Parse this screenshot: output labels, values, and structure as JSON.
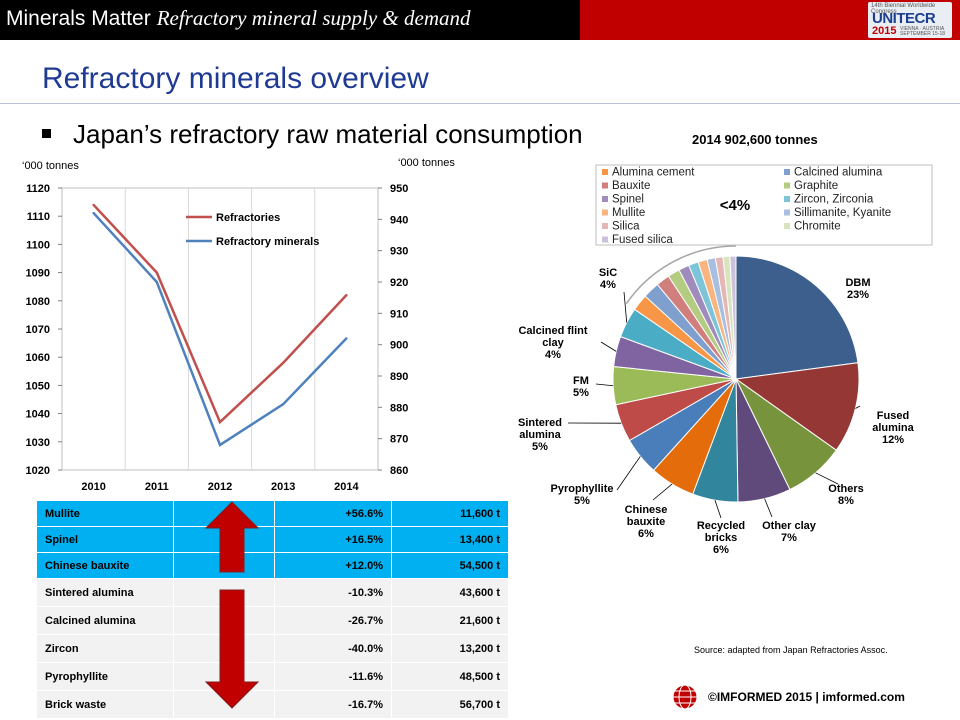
{
  "header": {
    "brand": "Minerals Matter",
    "subtitle": "Refractory mineral supply & demand",
    "logo": {
      "line1": "14th Biennial Worldwide Congress",
      "name": "UNITECR",
      "year": "2015",
      "place": "VIENNA · AUSTRIA",
      "dates": "SEPTEMBER 15-18"
    }
  },
  "slide": {
    "title": "Refractory minerals overview",
    "bullet": "Japan’s refractory raw material consumption"
  },
  "line_chart_data": {
    "type": "line",
    "x": [
      "2010",
      "2011",
      "2012",
      "2013",
      "2014"
    ],
    "left_axis_unit": "‘000 tonnes",
    "right_axis_unit": "‘000 tonnes",
    "left_ylim": [
      1020,
      1120
    ],
    "right_ylim": [
      860,
      950
    ],
    "left_ticks": [
      1020,
      1030,
      1040,
      1050,
      1060,
      1070,
      1080,
      1090,
      1100,
      1110,
      1120
    ],
    "right_ticks": [
      860,
      870,
      880,
      890,
      900,
      910,
      920,
      930,
      940,
      950
    ],
    "series": [
      {
        "name": "Refractories",
        "axis": "left",
        "color": "#c0504d",
        "values": [
          1114,
          1090,
          1037,
          1058,
          1082
        ]
      },
      {
        "name": "Refractory minerals",
        "axis": "right",
        "color": "#4f81bd",
        "values": [
          942,
          920,
          868,
          881,
          902
        ]
      }
    ]
  },
  "change_table": {
    "rows": [
      {
        "name": "Mullite",
        "change": "+56.6%",
        "amount": "11,600 t",
        "direction": "up"
      },
      {
        "name": "Spinel",
        "change": "+16.5%",
        "amount": "13,400 t",
        "direction": "up"
      },
      {
        "name": "Chinese bauxite",
        "change": "+12.0%",
        "amount": "54,500 t",
        "direction": "up"
      },
      {
        "name": "Sintered alumina",
        "change": "-10.3%",
        "amount": "43,600 t",
        "direction": "down"
      },
      {
        "name": "Calcined alumina",
        "change": "-26.7%",
        "amount": "21,600 t",
        "direction": "down"
      },
      {
        "name": "Zircon",
        "change": "-40.0%",
        "amount": "13,200 t",
        "direction": "down"
      },
      {
        "name": "Pyrophyllite",
        "change": "-11.6%",
        "amount": "48,500 t",
        "direction": "down"
      },
      {
        "name": "Brick waste",
        "change": "-16.7%",
        "amount": "56,700 t",
        "direction": "down"
      }
    ]
  },
  "chart_data": {
    "type": "pie",
    "title": "2014 902,600 tonnes",
    "small_share_note": "<4%",
    "slices": [
      {
        "label": "DBM",
        "value": 23,
        "text": "23%",
        "color": "#3c5f8e"
      },
      {
        "label": "Fused alumina",
        "value": 12,
        "text": "12%",
        "color": "#953735"
      },
      {
        "label": "Others",
        "value": 8,
        "text": "8%",
        "color": "#77933c"
      },
      {
        "label": "Other clay",
        "value": 7,
        "text": "7%",
        "color": "#604a7b"
      },
      {
        "label": "Recycled bricks",
        "value": 6,
        "text": "6%",
        "color": "#31859c"
      },
      {
        "label": "Chinese bauxite",
        "value": 6,
        "text": "6%",
        "color": "#e46c0a"
      },
      {
        "label": "Pyrophyllite",
        "value": 5,
        "text": "5%",
        "color": "#4a7ebb"
      },
      {
        "label": "Sintered alumina",
        "value": 5,
        "text": "5%",
        "color": "#be4b48"
      },
      {
        "label": "FM",
        "value": 5,
        "text": "5%",
        "color": "#9bbb59"
      },
      {
        "label": "Calcined flint clay",
        "value": 4,
        "text": "4%",
        "color": "#8064a2"
      },
      {
        "label": "SiC",
        "value": 4,
        "text": "4%",
        "color": "#4bacc6"
      },
      {
        "label": "Alumina cement",
        "value": 2.2,
        "color": "#f79646"
      },
      {
        "label": "Calcined alumina",
        "value": 2.2,
        "color": "#7f9fcf"
      },
      {
        "label": "Bauxite",
        "value": 1.8,
        "color": "#d07f7d"
      },
      {
        "label": "Graphite",
        "value": 1.6,
        "color": "#b3cc82"
      },
      {
        "label": "Spinel",
        "value": 1.4,
        "color": "#a08cbc"
      },
      {
        "label": "Zircon, Zirconia",
        "value": 1.3,
        "color": "#7cc5d9"
      },
      {
        "label": "Mullite",
        "value": 1.2,
        "color": "#f9b47f"
      },
      {
        "label": "Sillimanite, Kyanite",
        "value": 1.1,
        "color": "#a9bfe0"
      },
      {
        "label": "Silica",
        "value": 1.0,
        "color": "#e6b6b5"
      },
      {
        "label": "Chromite",
        "value": 0.9,
        "color": "#d7e4bd"
      },
      {
        "label": "Fused silica",
        "value": 0.8,
        "color": "#ccc1da"
      }
    ],
    "legend": [
      "Alumina cement",
      "Calcined alumina",
      "Bauxite",
      "Graphite",
      "Spinel",
      "Zircon, Zirconia",
      "Mullite",
      "Sillimanite, Kyanite",
      "Silica",
      "Chromite",
      "Fused silica"
    ]
  },
  "footer": {
    "source": "Source: adapted from Japan Refractories Assoc.",
    "copyright": "©IMFORMED 2015  | imformed.com"
  }
}
